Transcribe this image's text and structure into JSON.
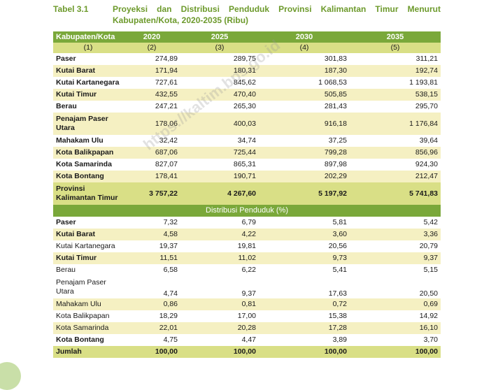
{
  "caption": {
    "label": "Tabel 3.1",
    "title_line1": "Proyeksi dan Distribusi Penduduk Provinsi Kalimantan Timur Menurut",
    "title_line2": "Kabupaten/Kota, 2020-2035 (Ribu)"
  },
  "header": {
    "col0": "Kabupaten/Kota",
    "col1": "2020",
    "col2": "2025",
    "col3": "2030",
    "col4": "2035"
  },
  "subheader": [
    "(1)",
    "(2)",
    "(3)",
    "(4)",
    "(5)"
  ],
  "projection_rows": [
    {
      "name": "Paser",
      "v": [
        "274,89",
        "289,75",
        "301,83",
        "311,21"
      ]
    },
    {
      "name": "Kutai Barat",
      "v": [
        "171,94",
        "180,31",
        "187,30",
        "192,74"
      ]
    },
    {
      "name": "Kutai Kartanegara",
      "v": [
        "727,61",
        "845,62",
        "1 068,53",
        "1 193,81"
      ]
    },
    {
      "name": "Kutai Timur",
      "v": [
        "432,55",
        "470,40",
        "505,85",
        "538,15"
      ]
    },
    {
      "name": "Berau",
      "v": [
        "247,21",
        "265,30",
        "281,43",
        "295,70"
      ]
    },
    {
      "name_a": "Penajam Paser",
      "name_b": "Utara",
      "v": [
        "178,06",
        "400,03",
        "916,18",
        "1 176,84"
      ]
    },
    {
      "name": "Mahakam Ulu",
      "v": [
        "32,42",
        "34,74",
        "37,25",
        "39,64"
      ]
    },
    {
      "name": "Kota Balikpapan",
      "v": [
        "687,06",
        "725,44",
        "799,28",
        "856,96"
      ]
    },
    {
      "name": "Kota Samarinda",
      "v": [
        "827,07",
        "865,31",
        "897,98",
        "924,30"
      ]
    },
    {
      "name": "Kota Bontang",
      "v": [
        "178,41",
        "190,71",
        "202,29",
        "212,47"
      ]
    }
  ],
  "projection_total": {
    "name_a": "Provinsi",
    "name_b": "Kalimantan Timur",
    "v": [
      "3 757,22",
      "4 267,60",
      "5 197,92",
      "5 741,83"
    ]
  },
  "distribution_title": "Distribusi Penduduk (%)",
  "distribution_rows": [
    {
      "name": "Paser",
      "v": [
        "7,32",
        "6,79",
        "5,81",
        "5,42"
      ]
    },
    {
      "name": "Kutai Barat",
      "v": [
        "4,58",
        "4,22",
        "3,60",
        "3,36"
      ]
    },
    {
      "name": "Kutai Kartanegara",
      "v": [
        "19,37",
        "19,81",
        "20,56",
        "20,79"
      ]
    },
    {
      "name": "Kutai Timur",
      "v": [
        "11,51",
        "11,02",
        "9,73",
        "9,37"
      ]
    },
    {
      "name": "Berau",
      "v": [
        "6,58",
        "6,22",
        "5,41",
        "5,15"
      ]
    },
    {
      "name_a": "Penajam Paser",
      "name_b": "Utara",
      "v": [
        "4,74",
        "9,37",
        "17,63",
        "20,50"
      ]
    },
    {
      "name": "Mahakam Ulu",
      "v": [
        "0,86",
        "0,81",
        "0,72",
        "0,69"
      ]
    },
    {
      "name": "Kota Balikpapan",
      "v": [
        "18,29",
        "17,00",
        "15,38",
        "14,92"
      ]
    },
    {
      "name": "Kota Samarinda",
      "v": [
        "22,01",
        "20,28",
        "17,28",
        "16,10"
      ]
    },
    {
      "name": "Kota Bontang",
      "v": [
        "4,75",
        "4,47",
        "3,89",
        "3,70"
      ]
    }
  ],
  "distribution_total": {
    "name": "Jumlah",
    "v": [
      "100,00",
      "100,00",
      "100,00",
      "100,00"
    ]
  },
  "watermark": "https://kaltim.bps.go.id",
  "colors": {
    "header_green": "#7aa83a",
    "light_band": "#d9df86",
    "stripe": "#f5f0c2",
    "caption_green": "#6d9a2c"
  }
}
